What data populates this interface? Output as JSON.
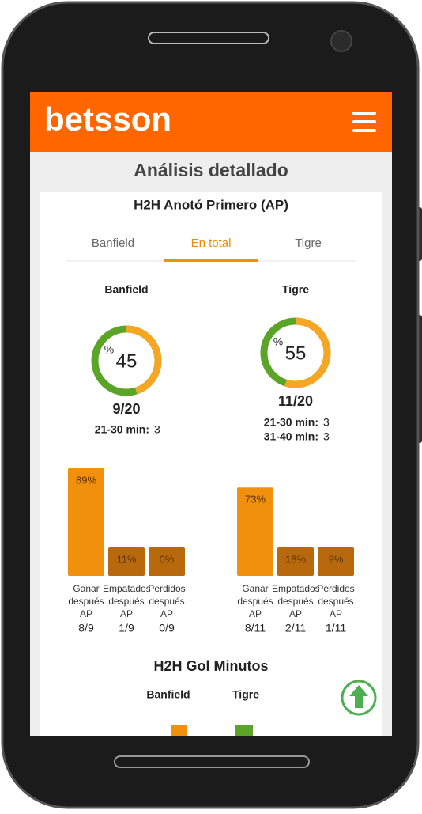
{
  "header": {
    "logo": "betsson"
  },
  "page_title": "Análisis detallado",
  "first_goal": {
    "title": "H2H Anotó Primero (AP)",
    "tabs": [
      "Banfield",
      "En total",
      "Tigre"
    ],
    "active_tab": 1,
    "percent_symbol": "%",
    "teams": [
      {
        "name": "Banfield",
        "percent": 45,
        "ratio": "9/20",
        "minutes": [
          {
            "label": "21-30 min:",
            "value": 3
          }
        ],
        "bars": [
          {
            "value": 89,
            "value_label": "89%",
            "label": "Ganar después AP",
            "ratio": "8/9"
          },
          {
            "value": 11,
            "value_label": "11%",
            "label": "Empatados después AP",
            "ratio": "1/9"
          },
          {
            "value": 0,
            "value_label": "0%",
            "label": "Perdidos después AP",
            "ratio": "0/9"
          }
        ]
      },
      {
        "name": "Tigre",
        "percent": 55,
        "ratio": "11/20",
        "minutes": [
          {
            "label": "21-30 min:",
            "value": 3
          },
          {
            "label": "31-40 min:",
            "value": 3
          }
        ],
        "bars": [
          {
            "value": 73,
            "value_label": "73%",
            "label": "Ganar después AP",
            "ratio": "8/11"
          },
          {
            "value": 18,
            "value_label": "18%",
            "label": "Empatados después AP",
            "ratio": "2/11"
          },
          {
            "value": 9,
            "value_label": "9%",
            "label": "Perdidos después AP",
            "ratio": "1/11"
          }
        ]
      }
    ]
  },
  "goal_minutes": {
    "title": "H2H Gol Minutos",
    "columns": [
      "Banfield",
      "Tigre"
    ]
  }
}
